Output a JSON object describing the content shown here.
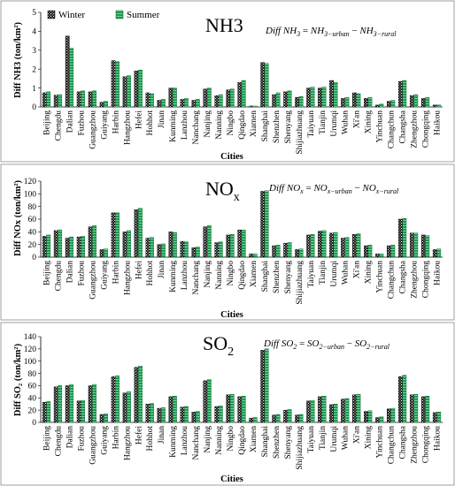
{
  "chart_data": [
    {
      "type": "bar",
      "title": "NH3",
      "formula": "Diff NH₃ = NH₃₋ᵤᵣᵇₐₙ − NH₃₋ᵣᵤᵣₐₗ",
      "formula_parts": {
        "lhs": "Diff NH",
        "lhs_sub": "3",
        "a": "NH",
        "a_sub": "3−urban",
        "b": "NH",
        "b_sub": "3−rural"
      },
      "xlabel": "Cities",
      "ylabel": "Diff NH3  (ton/km²)",
      "ylim": [
        0,
        5
      ],
      "yticks": [
        0,
        1,
        2,
        3,
        4,
        5
      ],
      "legend": "top-left",
      "categories": [
        "Beijing",
        "Chengdu",
        "Dalian",
        "Fuzhou",
        "Guangzhou",
        "Guiyang",
        "Harbin",
        "Hangzhou",
        "Hefei",
        "Hohhot",
        "Jinan",
        "Kunming",
        "Lanzhou",
        "Nanchang",
        "Nanjing",
        "Nanning",
        "Ningbo",
        "Qingdao",
        "Xiamen",
        "Shanghai",
        "Shenzhen",
        "Shenyang",
        "Shijiazhuang",
        "Taiyuan",
        "Tianjin",
        "Urumqi",
        "Wuhan",
        "Xi'an",
        "Xining",
        "Yinchuan",
        "Changchun",
        "Changsha",
        "Zhengzhou",
        "Chongqing",
        "Haikou"
      ],
      "series": [
        {
          "name": "Winter",
          "values": [
            0.75,
            0.62,
            3.75,
            0.8,
            0.8,
            0.25,
            2.45,
            1.6,
            1.9,
            0.75,
            0.35,
            1.0,
            0.4,
            0.35,
            0.95,
            0.6,
            0.9,
            1.3,
            0.05,
            2.35,
            0.65,
            0.8,
            0.5,
            1.0,
            1.0,
            1.4,
            0.45,
            0.75,
            0.45,
            0.1,
            0.3,
            1.35,
            0.6,
            0.45,
            0.1
          ]
        },
        {
          "name": "Summer",
          "values": [
            0.8,
            0.65,
            3.1,
            0.85,
            0.85,
            0.3,
            2.4,
            1.65,
            1.95,
            0.7,
            0.4,
            1.0,
            0.45,
            0.4,
            1.0,
            0.65,
            0.95,
            1.4,
            0.05,
            2.3,
            0.75,
            0.85,
            0.55,
            1.05,
            1.05,
            1.3,
            0.5,
            0.7,
            0.5,
            0.15,
            0.35,
            1.4,
            0.65,
            0.5,
            0.1
          ]
        }
      ]
    },
    {
      "type": "bar",
      "title": "NOx",
      "title_main": "NO",
      "title_sub": "x",
      "formula_parts": {
        "lhs": "Diff NO",
        "lhs_sub": "x",
        "a": "NO",
        "a_sub": "x−urban",
        "b": "NO",
        "b_sub": "x−rural"
      },
      "xlabel": "Cities",
      "ylabel": "Diff NOx  (ton/km²)",
      "ylim": [
        0,
        120
      ],
      "yticks": [
        0,
        20,
        40,
        60,
        80,
        100,
        120
      ],
      "categories": [
        "Beijing",
        "Chengdu",
        "Dalian",
        "Fuzhou",
        "Guangzhou",
        "Guiyang",
        "Harbin",
        "Hangzhou",
        "Hefei",
        "Hohhot",
        "Jinan",
        "Kunming",
        "Lanzhou",
        "Nanchang",
        "Nanjing",
        "Nanning",
        "Ningbo",
        "Qingdao",
        "Xiamen",
        "Shanghai",
        "Shenzhen",
        "Shenyang",
        "Shijiazhuang",
        "Taiyuan",
        "Tianjin",
        "Urumqi",
        "Wuhan",
        "Xi'an",
        "Xining",
        "Yinchuan",
        "Changchun",
        "Changsha",
        "Zhengzhou",
        "Chongqing",
        "Haikou"
      ],
      "series": [
        {
          "name": "Winter",
          "values": [
            33,
            42,
            30,
            32,
            48,
            12,
            70,
            40,
            75,
            30,
            20,
            40,
            25,
            15,
            48,
            23,
            35,
            43,
            5,
            104,
            18,
            22,
            12,
            35,
            41,
            38,
            30,
            36,
            18,
            5,
            18,
            60,
            38,
            35,
            12
          ]
        },
        {
          "name": "Summer",
          "values": [
            35,
            43,
            32,
            33,
            50,
            13,
            70,
            42,
            77,
            31,
            21,
            39,
            24,
            16,
            50,
            24,
            36,
            43,
            5,
            105,
            19,
            23,
            13,
            36,
            42,
            39,
            31,
            37,
            19,
            5,
            19,
            61,
            38,
            34,
            13
          ]
        }
      ]
    },
    {
      "type": "bar",
      "title": "SO2",
      "title_main": "SO",
      "title_sub": "2",
      "formula_parts": {
        "lhs": "Diff SO",
        "lhs_sub": "2",
        "a": "SO",
        "a_sub": "2−urban",
        "b": "SO",
        "b_sub": "2−rural"
      },
      "xlabel": "Cities",
      "ylabel": "Diff SO₂  (ton/km²)",
      "ylim": [
        0,
        140
      ],
      "yticks": [
        0,
        20,
        40,
        60,
        80,
        100,
        120,
        140
      ],
      "categories": [
        "Beijing",
        "Chengdu",
        "Dalian",
        "Fuzhou",
        "Guangzhou",
        "Guiyang",
        "Harbin",
        "Hangzhou",
        "Hefei",
        "Hohhot",
        "Jinan",
        "Kunming",
        "Lanzhou",
        "Nanchang",
        "Nanjing",
        "Nanning",
        "Ningbo",
        "Qingdao",
        "Xiamen",
        "Shanghai",
        "Shenzhen",
        "Shenyang",
        "Shijiazhuang",
        "Taiyuan",
        "Tianjin",
        "Urumqi",
        "Wuhan",
        "Xi'an",
        "Xining",
        "Yinchuan",
        "Changchun",
        "Changsha",
        "Zhengzhou",
        "Chongqing",
        "Haikou"
      ],
      "series": [
        {
          "name": "Winter",
          "values": [
            33,
            58,
            60,
            35,
            60,
            13,
            75,
            48,
            90,
            30,
            23,
            42,
            25,
            17,
            68,
            26,
            45,
            42,
            7,
            118,
            12,
            20,
            12,
            35,
            42,
            29,
            38,
            45,
            18,
            8,
            22,
            75,
            45,
            42,
            16
          ]
        },
        {
          "name": "Summer",
          "values": [
            34,
            60,
            62,
            36,
            62,
            14,
            76,
            50,
            92,
            31,
            24,
            43,
            26,
            18,
            70,
            27,
            46,
            43,
            8,
            120,
            13,
            21,
            13,
            36,
            43,
            30,
            39,
            46,
            19,
            9,
            23,
            77,
            46,
            43,
            17
          ]
        }
      ]
    }
  ],
  "colors": {
    "winter_fill": "#1a1a1a",
    "winter_hatch": "#ffffff",
    "summer_fill": "#1f9a4f",
    "summer_edge": "#0b5a2a",
    "frame": "#8a8a8a"
  }
}
